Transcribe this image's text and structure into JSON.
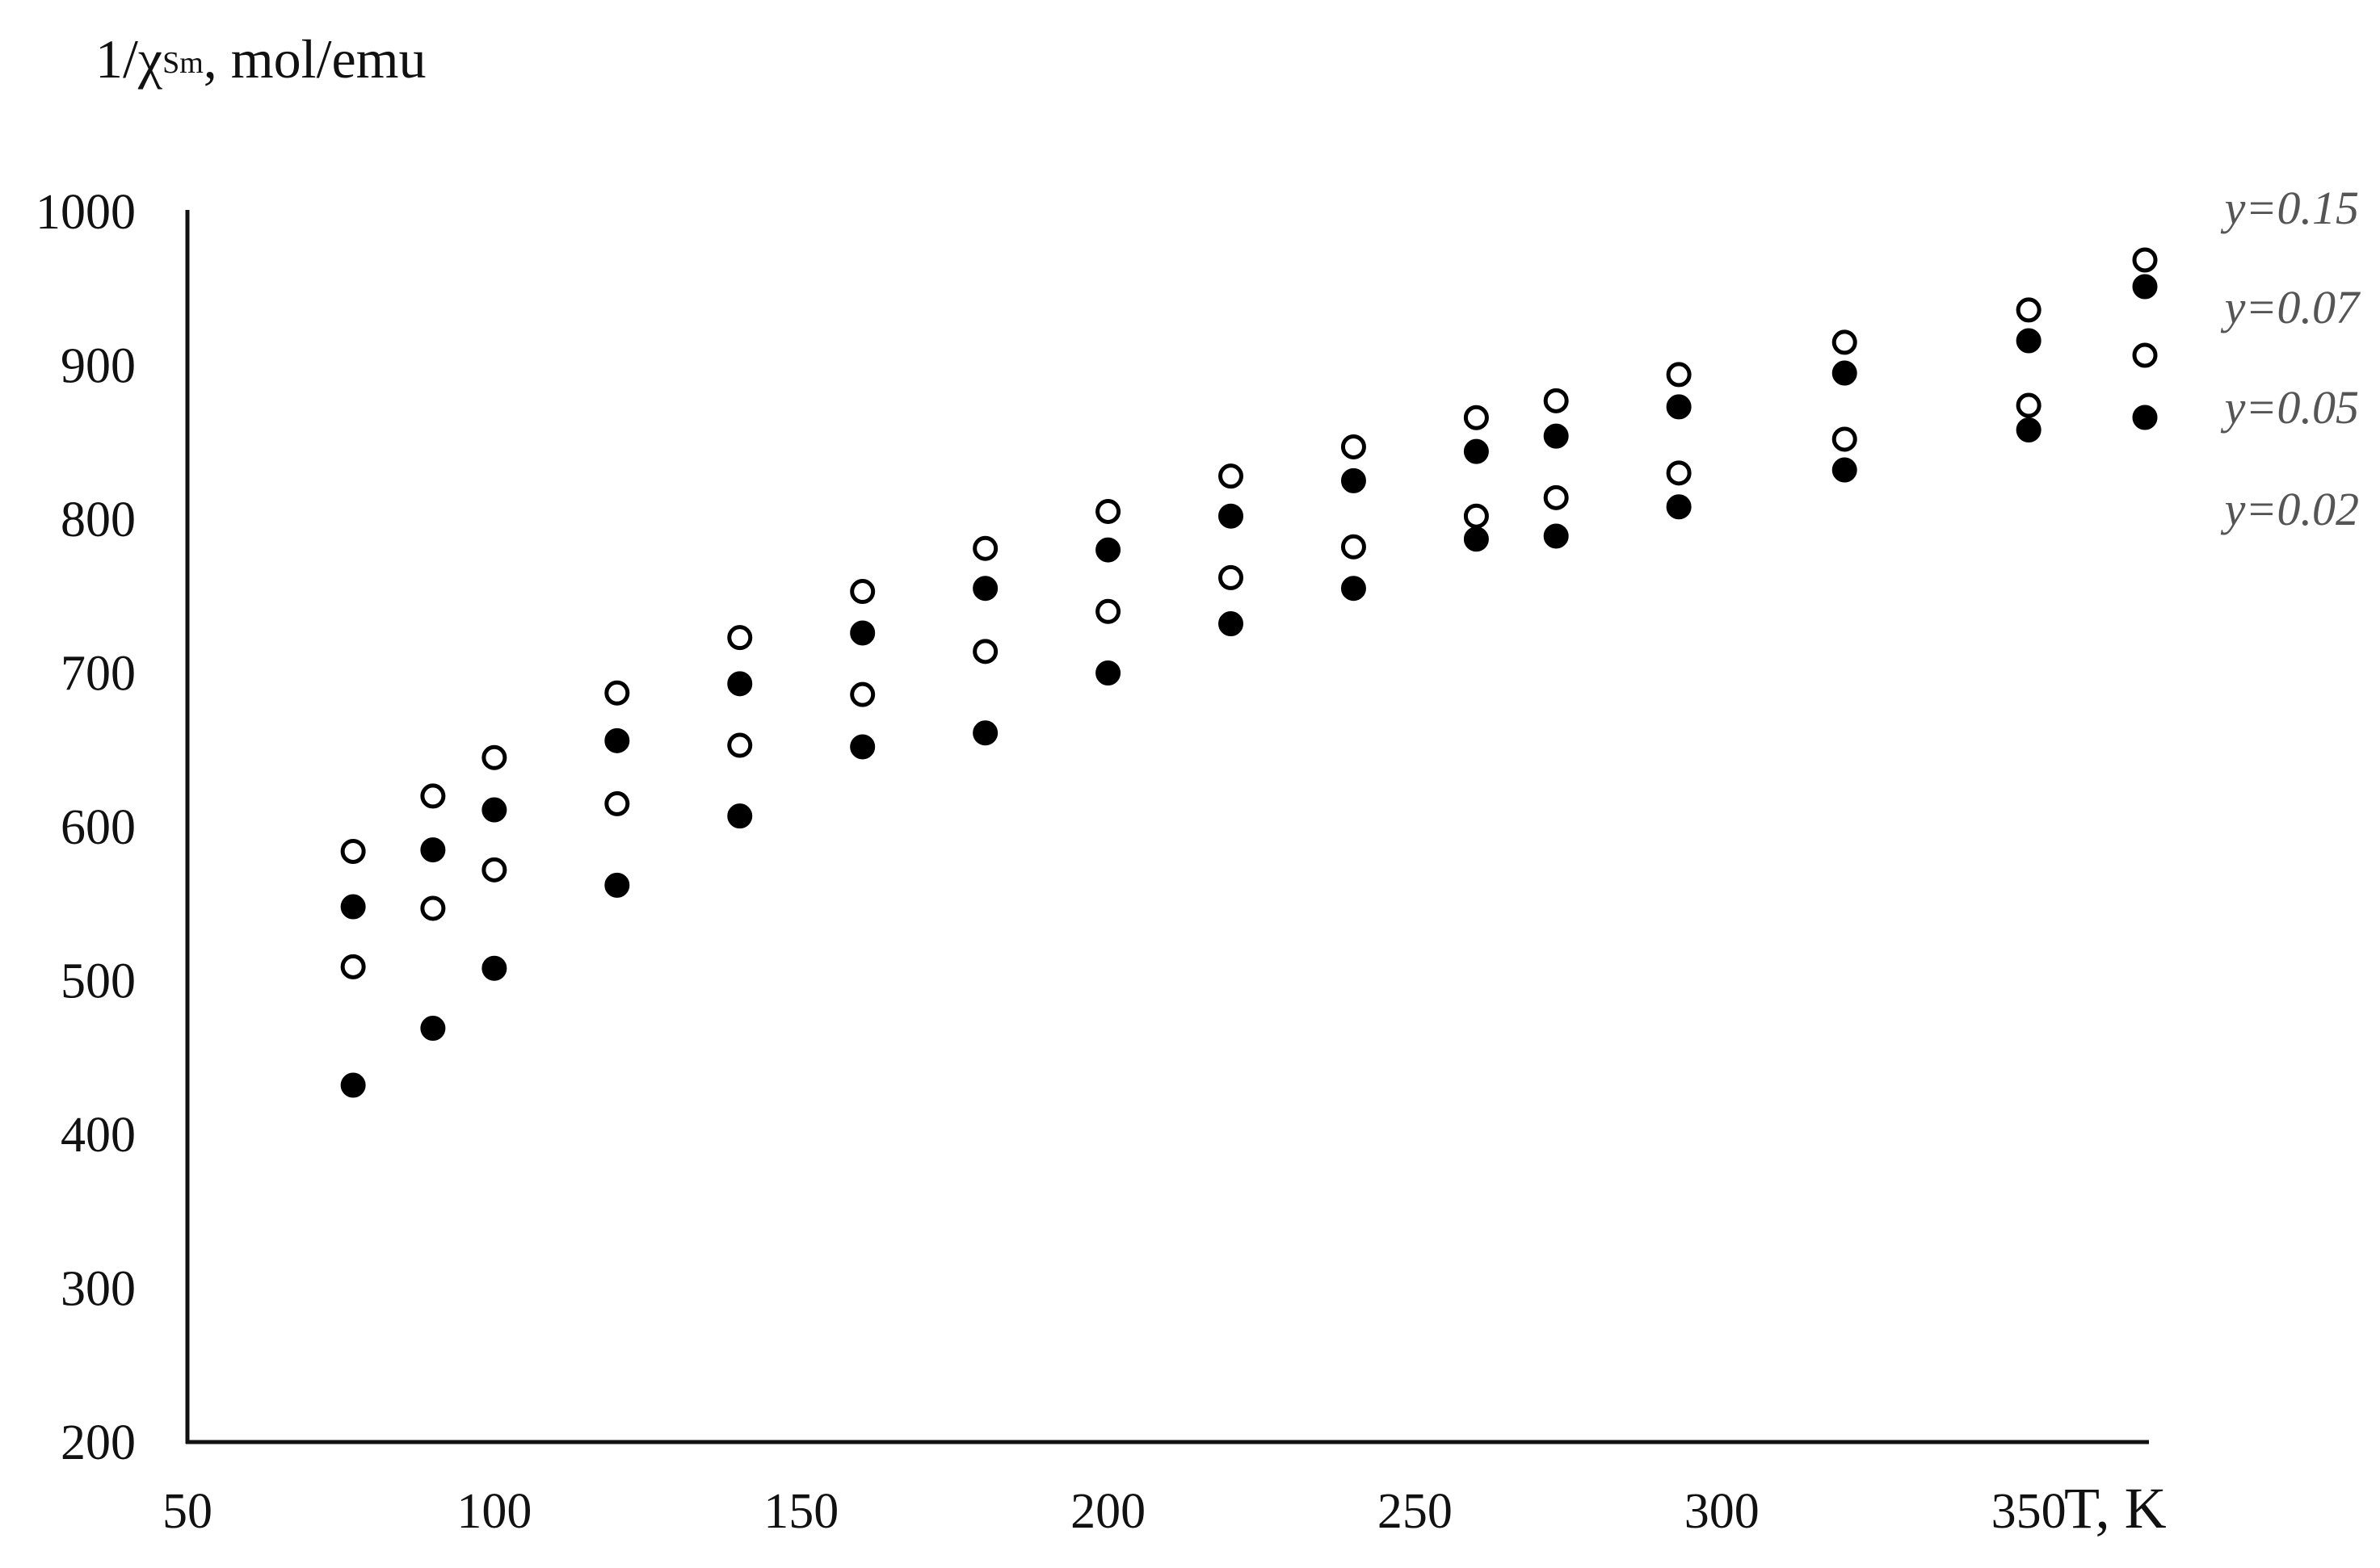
{
  "chart_data": {
    "type": "scatter",
    "title": {
      "prefix": "1/χ",
      "subscript": "Sm",
      "suffix": ", mol/emu"
    },
    "xlabel": "T, K",
    "ylabel": "",
    "xlim": [
      50,
      400
    ],
    "ylim": [
      200,
      1000
    ],
    "x_ticks": [
      50,
      100,
      150,
      200,
      250,
      300,
      350
    ],
    "y_ticks": [
      200,
      300,
      400,
      500,
      600,
      700,
      800,
      900,
      1000
    ],
    "grid": false,
    "legend_position": "top-right",
    "series": [
      {
        "name": "y=0.15",
        "marker": "open-circle",
        "x": [
          77,
          90,
          100,
          120,
          140,
          160,
          180,
          200,
          220,
          240,
          260,
          273,
          293,
          320,
          350
        ],
        "y": [
          584,
          620,
          645,
          687,
          723,
          753,
          781,
          805,
          828,
          847,
          866,
          877,
          894,
          915,
          936
        ]
      },
      {
        "name": "y=0.07",
        "marker": "filled-circle",
        "x": [
          77,
          90,
          100,
          120,
          140,
          160,
          180,
          200,
          220,
          240,
          260,
          273,
          293,
          320,
          350
        ],
        "y": [
          548,
          585,
          611,
          656,
          693,
          726,
          755,
          780,
          802,
          825,
          844,
          854,
          873,
          895,
          916
        ]
      },
      {
        "name": "y=0.05",
        "marker": "open-circle",
        "x": [
          77,
          90,
          100,
          120,
          140,
          160,
          180,
          200,
          220,
          240,
          260,
          273,
          293,
          320,
          350
        ],
        "y": [
          509,
          547,
          572,
          615,
          653,
          686,
          714,
          740,
          762,
          782,
          802,
          814,
          830,
          852,
          874
        ]
      },
      {
        "name": "y=0.02",
        "marker": "filled-circle",
        "x": [
          77,
          90,
          100,
          120,
          140,
          160,
          180,
          200,
          220,
          240,
          260,
          273,
          293,
          320,
          350
        ],
        "y": [
          432,
          469,
          508,
          562,
          607,
          652,
          661,
          700,
          732,
          755,
          787,
          789,
          808,
          832,
          858
        ]
      }
    ]
  }
}
